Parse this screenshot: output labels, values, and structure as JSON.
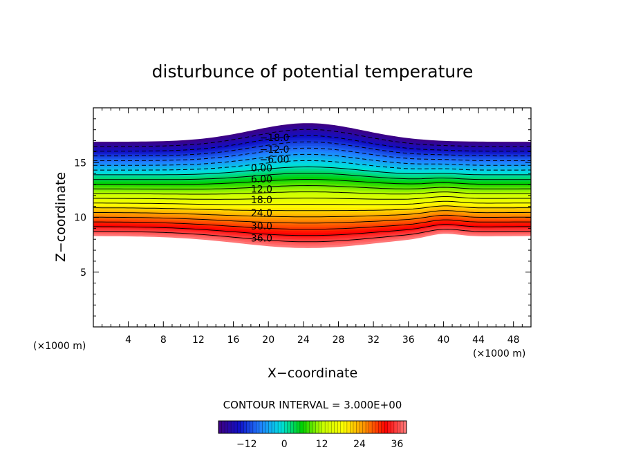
{
  "chart_data": {
    "type": "contour",
    "title": "disturbunce of potential temperature",
    "xlabel": "X−coordinate",
    "ylabel": "Z−coordinate",
    "x_unit": "(×1000 m)",
    "y_unit": "(×1000 m)",
    "xlim": [
      0,
      50
    ],
    "ylim": [
      0,
      20
    ],
    "x_ticks": [
      4,
      8,
      12,
      16,
      20,
      24,
      28,
      32,
      36,
      40,
      44,
      48
    ],
    "y_ticks": [
      5,
      10,
      15
    ],
    "x_tick_labels": [
      "4",
      "8",
      "12",
      "16",
      "20",
      "24",
      "28",
      "32",
      "36",
      "40",
      "44",
      "48"
    ],
    "y_tick_labels": [
      "5",
      "10",
      "15"
    ],
    "contour_interval_text": "CONTOUR INTERVAL = 3.000E+00",
    "contour_interval": 3.0,
    "value_range": [
      -21,
      39
    ],
    "field_extent": {
      "top_flat_z": 16.9,
      "top_peak_z": 18.6,
      "top_peak_x": 24.5,
      "bottom_flat_z": 8.3,
      "bottom_min_z": 7.2,
      "bottom_min_x": 24.5
    },
    "contour_labels": [
      {
        "text": "−18.0",
        "value": -18,
        "x": 19,
        "z": 17.3
      },
      {
        "text": "−12.0",
        "value": -12,
        "x": 19,
        "z": 16.2
      },
      {
        "text": "−6.00",
        "value": -6,
        "x": 19,
        "z": 15.3
      },
      {
        "text": "0.00",
        "value": 0,
        "x": 18,
        "z": 14.5
      },
      {
        "text": "6.00",
        "value": 6,
        "x": 18,
        "z": 13.5
      },
      {
        "text": "12.0",
        "value": 12,
        "x": 18,
        "z": 12.6
      },
      {
        "text": "18.0",
        "value": 18,
        "x": 18,
        "z": 11.6
      },
      {
        "text": "24.0",
        "value": 24,
        "x": 18,
        "z": 10.4
      },
      {
        "text": "30.0",
        "value": 30,
        "x": 18,
        "z": 9.2
      },
      {
        "text": "36.0",
        "value": 36,
        "x": 18,
        "z": 8.1
      }
    ],
    "colorbar": {
      "ticks": [
        -12,
        0,
        12,
        24,
        36
      ],
      "tick_labels": [
        "−12",
        "0",
        "12",
        "24",
        "36"
      ],
      "range": [
        -21,
        39
      ]
    },
    "colors": {
      "background": "#ffffff",
      "contour_line": "#000000",
      "colormap": [
        "#400080",
        "#1010c8",
        "#2080ff",
        "#00e0e0",
        "#00d000",
        "#c8ff00",
        "#ffff00",
        "#ff9000",
        "#ff0000",
        "#ff8080"
      ]
    }
  }
}
